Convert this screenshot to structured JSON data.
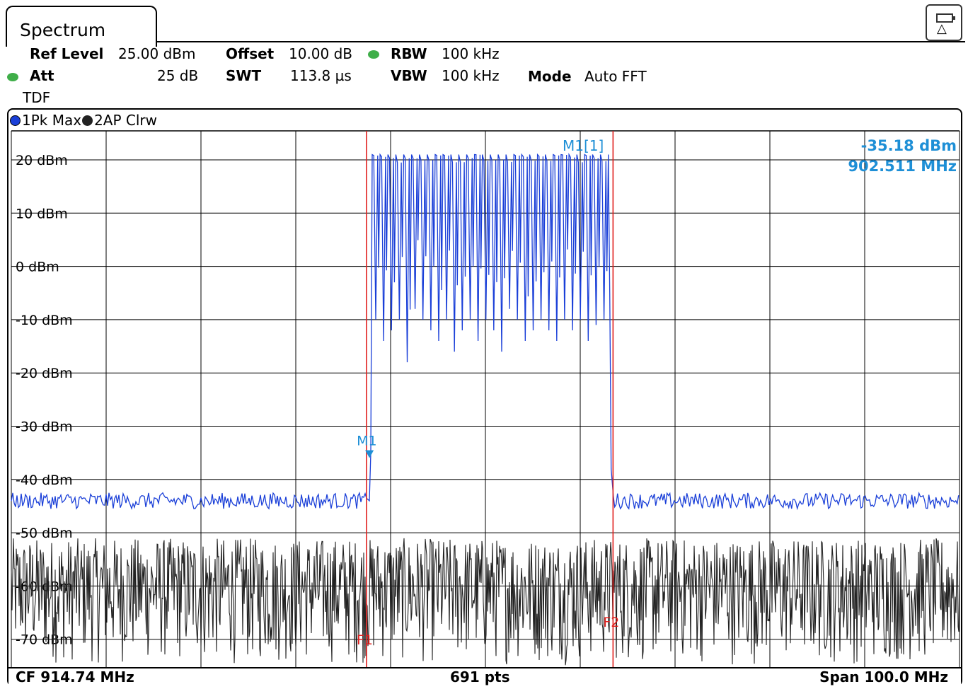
{
  "window": {
    "tab_title": "Spectrum"
  },
  "settings": {
    "ref_level_label": "Ref Level",
    "ref_level_value": "25.00 dBm",
    "offset_label": "Offset",
    "offset_value": "10.00 dB",
    "rbw_label": "RBW",
    "rbw_value": "100 kHz",
    "att_label": "Att",
    "att_value": "25 dB",
    "swt_label": "SWT",
    "swt_value": "113.8 µs",
    "vbw_label": "VBW",
    "vbw_value": "100 kHz",
    "mode_label": "Mode",
    "mode_value": "Auto FFT",
    "tdf_label": "TDF"
  },
  "traces": [
    {
      "label": "1Pk Max",
      "color": "#1a3fd8"
    },
    {
      "label": "2AP Clrw",
      "color": "#222222"
    }
  ],
  "marker_readout": {
    "name": "M1[1]",
    "level": "-35.18 dBm",
    "frequency": "902.511 MHz",
    "color": "#1e8fd6"
  },
  "markers": {
    "m1": "M1",
    "f1": "F1",
    "f2": "F2"
  },
  "footer": {
    "cf": "CF 914.74 MHz",
    "points": "691 pts",
    "span": "Span 100.0 MHz"
  },
  "chart_data": {
    "type": "line",
    "y_unit": "dBm",
    "ylim": [
      -75,
      25
    ],
    "y_ticks": [
      20,
      10,
      0,
      -10,
      -20,
      -30,
      -40,
      -50,
      -60,
      -70
    ],
    "y_tick_labels": [
      "20 dBm",
      "10 dBm",
      "0 dBm",
      "-10 dBm",
      "-20 dBm",
      "-30 dBm",
      "-40 dBm",
      "-50 dBm",
      "-60 dBm",
      "-70 dBm"
    ],
    "center_frequency_mhz": 914.74,
    "span_mhz": 100.0,
    "xlim_mhz": [
      864.74,
      964.74
    ],
    "grid": true,
    "vertical_lines_mhz": [
      {
        "name": "F1",
        "x": 902.2
      },
      {
        "name": "F2",
        "x": 928.2
      }
    ],
    "marker": {
      "name": "M1",
      "x_mhz": 902.511,
      "y_dbm": -35.18
    },
    "series": [
      {
        "name": "1Pk Max",
        "color": "#1a3fd8",
        "noise_floor_dbm": -44,
        "band_mhz": [
          902.5,
          928.0
        ],
        "band_top_dbm": 21,
        "dips_dbm": [
          -10,
          -14,
          -12,
          -10,
          -18,
          -8,
          -10,
          -12,
          -14,
          -10,
          -16,
          -12,
          -10,
          -14,
          -10,
          -12,
          -16,
          -8,
          -10,
          -14,
          -12,
          -10,
          -12,
          -14,
          -10,
          -12,
          -10,
          -14,
          -11,
          -10
        ]
      },
      {
        "name": "2AP Clrw",
        "color": "#222222",
        "noise_range_dbm": [
          -75,
          -51
        ]
      }
    ]
  }
}
